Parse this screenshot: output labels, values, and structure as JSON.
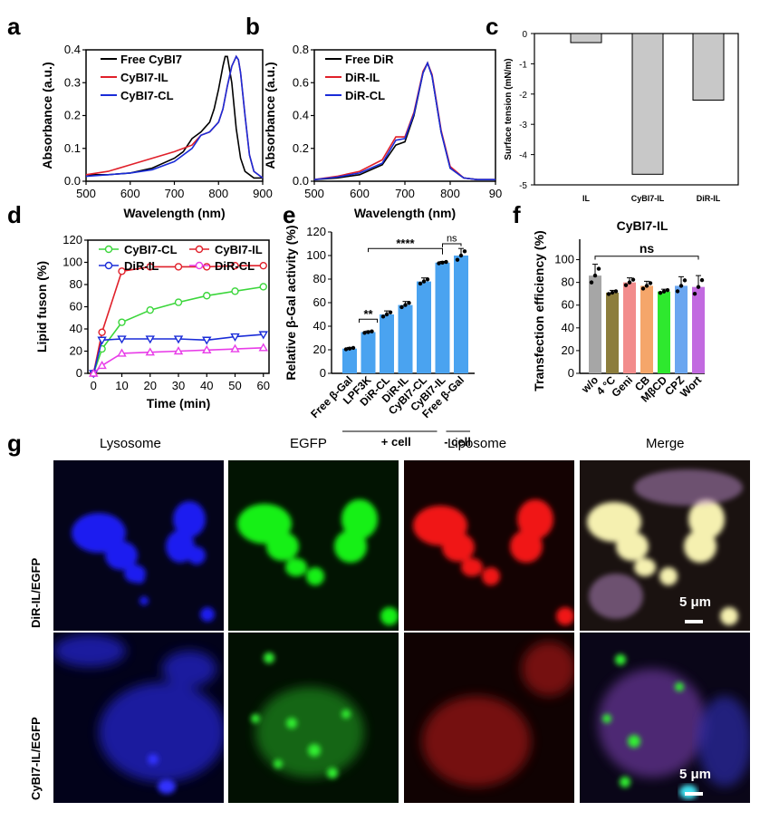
{
  "panels": {
    "a": {
      "letter": "a",
      "xlabel": "Wavelength (nm)",
      "ylabel": "Absorbance (a.u.)",
      "xticks": [
        "500",
        "600",
        "700",
        "800",
        "900"
      ],
      "yticks": [
        "0.0",
        "0.1",
        "0.2",
        "0.3",
        "0.4"
      ],
      "legend": [
        "Free CyBI7",
        "CyBI7-IL",
        "CyBI7-CL"
      ]
    },
    "b": {
      "letter": "b",
      "xlabel": "Wavelength (nm)",
      "ylabel": "Absorbance (a.u.)",
      "xticks": [
        "500",
        "600",
        "700",
        "800",
        "90"
      ],
      "yticks": [
        "0.0",
        "0.2",
        "0.4",
        "0.6",
        "0.8"
      ],
      "legend": [
        "Free DiR",
        "DiR-IL",
        "DiR-CL"
      ]
    },
    "c": {
      "letter": "c",
      "ylabel": "Surface tension (mN/m)",
      "yticks": [
        "0",
        "-1",
        "-2",
        "-3",
        "-4",
        "-5"
      ],
      "categories": [
        "IL",
        "CyBI7-IL",
        "DiR-IL"
      ]
    },
    "d": {
      "letter": "d",
      "xlabel": "Time (min)",
      "ylabel": "Lipid fuson (%)",
      "xticks": [
        "0",
        "10",
        "20",
        "30",
        "40",
        "50",
        "60"
      ],
      "yticks": [
        "0",
        "20",
        "40",
        "60",
        "80",
        "100",
        "120"
      ],
      "legend": [
        "CyBI7-CL",
        "CyBI7-IL",
        "DiR-IL",
        "DiR-CL"
      ]
    },
    "e": {
      "letter": "e",
      "ylabel": "Relative β-Gal activity (%)",
      "yticks": [
        "0",
        "20",
        "40",
        "60",
        "80",
        "100",
        "120"
      ],
      "categories": [
        "Free β-Gal",
        "LPF3K",
        "DiR-CL",
        "DiR-IL",
        "CyBI7-CL",
        "CyBI7-IL",
        "Free β-Gal"
      ],
      "sig": [
        "**",
        "****",
        "ns"
      ],
      "groups": [
        "+ cell",
        "- cell"
      ]
    },
    "f": {
      "letter": "f",
      "title": "CyBI7-IL",
      "ylabel": "Transfection efficiency (%)",
      "yticks": [
        "0",
        "20",
        "40",
        "60",
        "80",
        "100"
      ],
      "categories": [
        "w/o",
        "4 °C",
        "Geni",
        "CB",
        "MβCD",
        "CPZ",
        "Wort"
      ],
      "sig": "ns"
    },
    "g": {
      "letter": "g",
      "columns": [
        "Lysosome",
        "EGFP",
        "Liposome",
        "Merge"
      ],
      "rows": [
        "DiR-IL/EGFP",
        "CyBI7-IL/EGFP"
      ],
      "scalebar": "5 μm"
    }
  },
  "chart_data": [
    {
      "type": "line",
      "panel": "a",
      "xlabel": "Wavelength (nm)",
      "ylabel": "Absorbance (a.u.)",
      "xlim": [
        500,
        900
      ],
      "ylim": [
        0,
        0.4
      ],
      "series": [
        {
          "name": "Free CyBI7",
          "color": "#000000",
          "x": [
            500,
            550,
            600,
            650,
            700,
            720,
            740,
            760,
            780,
            790,
            800,
            810,
            815,
            820,
            830,
            840,
            850,
            860,
            880,
            900
          ],
          "y": [
            0.02,
            0.02,
            0.025,
            0.04,
            0.07,
            0.09,
            0.13,
            0.15,
            0.18,
            0.22,
            0.28,
            0.35,
            0.38,
            0.38,
            0.3,
            0.16,
            0.07,
            0.03,
            0.01,
            0.01
          ]
        },
        {
          "name": "CyBI7-IL",
          "color": "#e0202a",
          "x": [
            500,
            550,
            600,
            650,
            700,
            740,
            760,
            780,
            800,
            810,
            820,
            830,
            840,
            845,
            850,
            860,
            870,
            880,
            900
          ],
          "y": [
            0.02,
            0.03,
            0.05,
            0.07,
            0.09,
            0.11,
            0.14,
            0.15,
            0.18,
            0.22,
            0.29,
            0.35,
            0.38,
            0.37,
            0.33,
            0.2,
            0.08,
            0.03,
            0.01
          ]
        },
        {
          "name": "CyBI7-CL",
          "color": "#1a2cd8",
          "x": [
            500,
            550,
            600,
            650,
            700,
            740,
            760,
            780,
            800,
            810,
            820,
            830,
            840,
            845,
            850,
            860,
            870,
            880,
            900
          ],
          "y": [
            0.015,
            0.02,
            0.025,
            0.035,
            0.06,
            0.1,
            0.14,
            0.15,
            0.18,
            0.22,
            0.29,
            0.35,
            0.38,
            0.37,
            0.33,
            0.2,
            0.08,
            0.03,
            0.01
          ]
        }
      ]
    },
    {
      "type": "line",
      "panel": "b",
      "xlabel": "Wavelength (nm)",
      "ylabel": "Absorbance (a.u.)",
      "xlim": [
        500,
        900
      ],
      "ylim": [
        0,
        0.8
      ],
      "series": [
        {
          "name": "Free DiR",
          "color": "#000000",
          "x": [
            500,
            550,
            600,
            650,
            680,
            700,
            720,
            740,
            750,
            760,
            780,
            800,
            830,
            860,
            900
          ],
          "y": [
            0.01,
            0.02,
            0.04,
            0.1,
            0.22,
            0.24,
            0.4,
            0.66,
            0.72,
            0.64,
            0.3,
            0.08,
            0.02,
            0.01,
            0.01
          ]
        },
        {
          "name": "DiR-IL",
          "color": "#e0202a",
          "x": [
            500,
            550,
            600,
            650,
            680,
            700,
            720,
            740,
            750,
            760,
            780,
            800,
            830,
            860,
            900
          ],
          "y": [
            0.01,
            0.03,
            0.06,
            0.13,
            0.27,
            0.27,
            0.42,
            0.67,
            0.72,
            0.65,
            0.31,
            0.09,
            0.02,
            0.01,
            0.01
          ]
        },
        {
          "name": "DiR-CL",
          "color": "#1a2cd8",
          "x": [
            500,
            550,
            600,
            650,
            680,
            700,
            720,
            740,
            750,
            760,
            780,
            800,
            830,
            860,
            900
          ],
          "y": [
            0.01,
            0.025,
            0.05,
            0.11,
            0.25,
            0.26,
            0.41,
            0.66,
            0.72,
            0.64,
            0.3,
            0.08,
            0.02,
            0.01,
            0.01
          ]
        }
      ]
    },
    {
      "type": "bar",
      "panel": "c",
      "ylabel": "Surface tension (mN/m)",
      "categories": [
        "IL",
        "CyBI7-IL",
        "DiR-IL"
      ],
      "values": [
        -0.3,
        -4.65,
        -2.2
      ],
      "ylim": [
        -5,
        0
      ]
    },
    {
      "type": "line",
      "panel": "d",
      "xlabel": "Time (min)",
      "ylabel": "Lipid fuson (%)",
      "xlim": [
        0,
        60
      ],
      "ylim": [
        0,
        120
      ],
      "x": [
        0,
        3,
        10,
        20,
        30,
        40,
        50,
        60
      ],
      "series": [
        {
          "name": "CyBI7-CL",
          "color": "#3bd63b",
          "marker": "circle",
          "values": [
            0,
            22,
            46,
            57,
            64,
            70,
            74,
            78
          ]
        },
        {
          "name": "CyBI7-IL",
          "color": "#e0202a",
          "marker": "circle",
          "values": [
            0,
            37,
            92,
            96,
            96,
            96,
            97,
            97
          ]
        },
        {
          "name": "DiR-IL",
          "color": "#1a2cd8",
          "marker": "triangle-down",
          "values": [
            0,
            30,
            31,
            31,
            31,
            30,
            33,
            35
          ]
        },
        {
          "name": "DiR-CL",
          "color": "#e83ce8",
          "marker": "triangle-up",
          "values": [
            0,
            7,
            18,
            19,
            20,
            21,
            22,
            23
          ]
        }
      ]
    },
    {
      "type": "bar",
      "panel": "e",
      "ylabel": "Relative β-Gal activity (%)",
      "categories": [
        "Free β-Gal",
        "LPF3K",
        "DiR-CL",
        "DiR-IL",
        "CyBI7-CL",
        "CyBI7-IL",
        "Free β-Gal"
      ],
      "values": [
        21,
        35,
        50,
        58,
        78,
        94,
        100
      ],
      "errors": [
        1,
        1,
        3,
        3,
        3,
        1,
        6
      ],
      "ylim": [
        0,
        120
      ],
      "color": "#4aa3f0"
    },
    {
      "type": "bar",
      "panel": "f",
      "title": "CyBI7-IL",
      "ylabel": "Transfection efficiency (%)",
      "categories": [
        "w/o",
        "4 °C",
        "Geni",
        "CB",
        "MβCD",
        "CPZ",
        "Wort"
      ],
      "values": [
        86,
        71,
        80,
        77,
        72,
        77,
        76
      ],
      "errors": [
        10,
        2,
        4,
        4,
        2,
        8,
        10
      ],
      "ylim": [
        0,
        110
      ],
      "colors": [
        "#a6a6a6",
        "#8c7d3c",
        "#f28c8c",
        "#f5a66a",
        "#2ee82e",
        "#6aa6f0",
        "#c26ae0"
      ]
    }
  ]
}
